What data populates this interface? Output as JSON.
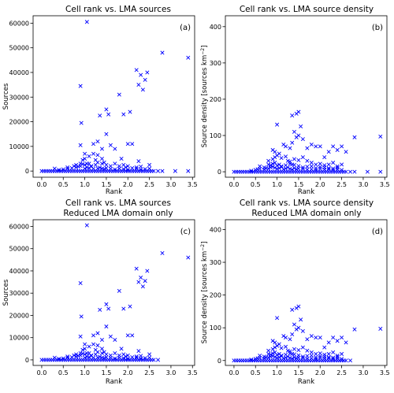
{
  "chart_data": [
    {
      "type": "scatter",
      "title": [
        "Cell rank vs. LMA sources"
      ],
      "panel_label": "(a)",
      "xlabel": "Rank",
      "ylabel": "Sources",
      "ylabel_parts": [
        "Sources",
        "",
        ""
      ],
      "xlim": [
        -0.2,
        3.55
      ],
      "ylim": [
        -2500,
        63000
      ],
      "xticks": [
        0.0,
        0.5,
        1.0,
        1.5,
        2.0,
        2.5,
        3.0,
        3.5
      ],
      "xtick_labels": [
        "0.0",
        "0.5",
        "1.0",
        "1.5",
        "2.0",
        "2.5",
        "3.0",
        "3.5"
      ],
      "yticks": [
        0,
        10000,
        20000,
        30000,
        40000,
        50000,
        60000
      ],
      "ytick_labels": [
        "0",
        "10000",
        "20000",
        "30000",
        "40000",
        "50000",
        "60000"
      ],
      "marker": "x",
      "color": "#0000ff",
      "x": [
        0.0,
        0.05,
        0.1,
        0.15,
        0.2,
        0.25,
        0.3,
        0.35,
        0.4,
        0.45,
        0.5,
        0.55,
        0.6,
        0.65,
        0.7,
        0.75,
        0.8,
        0.85,
        0.9,
        0.95,
        1.0,
        1.05,
        1.1,
        1.15,
        1.2,
        1.25,
        1.3,
        1.35,
        1.4,
        1.45,
        1.5,
        1.55,
        1.6,
        1.65,
        1.7,
        1.75,
        1.8,
        1.85,
        1.9,
        1.95,
        2.0,
        2.05,
        2.1,
        2.15,
        2.2,
        2.25,
        2.3,
        2.35,
        2.4,
        2.45,
        2.5,
        2.55,
        2.6,
        2.7,
        2.8,
        3.1,
        3.4,
        0.4,
        0.5,
        0.6,
        0.7,
        0.8,
        0.85,
        0.9,
        1.0,
        1.05,
        1.1,
        1.15,
        1.2,
        1.3,
        1.35,
        1.4,
        1.45,
        1.5,
        1.6,
        1.7,
        1.8,
        1.9,
        2.0,
        2.1,
        2.2,
        2.3,
        2.4,
        2.5,
        0.3,
        0.6,
        0.75,
        0.8,
        0.9,
        0.95,
        1.0,
        1.05,
        1.15,
        1.25,
        1.3,
        1.4,
        1.5,
        1.6,
        1.7,
        1.8,
        1.9,
        2.0,
        2.2,
        2.3,
        0.95,
        1.0,
        1.1,
        1.2,
        1.3,
        1.4,
        0.9,
        0.92,
        1.0,
        1.1,
        1.2,
        1.25,
        1.3,
        1.35,
        1.4,
        1.5,
        1.55,
        1.6,
        1.7,
        1.8,
        1.85,
        1.9,
        2.0,
        2.05,
        2.1,
        2.2,
        2.25,
        2.3,
        2.35,
        2.4,
        2.45,
        2.5,
        2.8,
        3.4,
        0.9,
        1.05,
        1.45,
        1.5,
        1.95,
        2.25
      ],
      "y": [
        0,
        0,
        0,
        0,
        0,
        0,
        0,
        0,
        0,
        0,
        0,
        0,
        0,
        0,
        0,
        0,
        0,
        0,
        0,
        0,
        0,
        0,
        0,
        0,
        0,
        0,
        0,
        0,
        0,
        0,
        0,
        0,
        0,
        0,
        0,
        0,
        0,
        0,
        0,
        0,
        0,
        0,
        0,
        0,
        0,
        0,
        0,
        0,
        0,
        0,
        0,
        0,
        0,
        0,
        0,
        0,
        0,
        500,
        700,
        900,
        1200,
        1500,
        1800,
        2000,
        1000,
        1500,
        1200,
        1800,
        900,
        1100,
        1400,
        1000,
        800,
        1200,
        900,
        700,
        1000,
        800,
        600,
        1200,
        900,
        700,
        800,
        1000,
        1000,
        1500,
        2000,
        2500,
        3000,
        2800,
        2500,
        3000,
        2000,
        2500,
        3500,
        3000,
        2500,
        2000,
        3000,
        2000,
        2500,
        2000,
        1500,
        1800,
        4500,
        5000,
        6000,
        7000,
        6500,
        5000,
        10500,
        19500,
        7000,
        3000,
        11000,
        4500,
        12000,
        22500,
        9000,
        15000,
        23000,
        10500,
        9000,
        31000,
        5000,
        23000,
        11000,
        24000,
        11000,
        41000,
        35000,
        39000,
        33000,
        37000,
        40000,
        2500,
        48000,
        46000,
        34500,
        60500,
        3500,
        25000,
        1500,
        4000
      ]
    },
    {
      "type": "scatter",
      "title": [
        "Cell rank vs. LMA source density"
      ],
      "panel_label": "(b)",
      "xlabel": "Rank",
      "ylabel": "Source density [sources km−2]",
      "ylabel_parts": [
        "Source density [sources km",
        "−2",
        "]"
      ],
      "xlim": [
        -0.2,
        3.55
      ],
      "ylim": [
        -15,
        430
      ],
      "xticks": [
        0.0,
        0.5,
        1.0,
        1.5,
        2.0,
        2.5,
        3.0,
        3.5
      ],
      "xtick_labels": [
        "0.0",
        "0.5",
        "1.0",
        "1.5",
        "2.0",
        "2.5",
        "3.0",
        "3.5"
      ],
      "yticks": [
        0,
        100,
        200,
        300,
        400
      ],
      "ytick_labels": [
        "0",
        "100",
        "200",
        "300",
        "400"
      ],
      "marker": "x",
      "color": "#0000ff",
      "x": [
        0.0,
        0.05,
        0.1,
        0.15,
        0.2,
        0.25,
        0.3,
        0.35,
        0.4,
        0.45,
        0.5,
        0.55,
        0.6,
        0.65,
        0.7,
        0.75,
        0.8,
        0.85,
        0.9,
        0.95,
        1.0,
        1.05,
        1.1,
        1.15,
        1.2,
        1.25,
        1.3,
        1.35,
        1.4,
        1.45,
        1.5,
        1.55,
        1.6,
        1.65,
        1.7,
        1.75,
        1.8,
        1.85,
        1.9,
        1.95,
        2.0,
        2.05,
        2.1,
        2.15,
        2.2,
        2.25,
        2.3,
        2.35,
        2.4,
        2.45,
        2.5,
        2.55,
        2.6,
        2.7,
        2.8,
        3.1,
        3.4,
        0.4,
        0.5,
        0.55,
        0.6,
        0.7,
        0.75,
        0.8,
        0.85,
        0.9,
        0.95,
        1.0,
        1.05,
        1.1,
        1.15,
        1.2,
        1.25,
        1.3,
        1.35,
        1.4,
        1.45,
        1.5,
        1.6,
        1.7,
        1.8,
        1.9,
        2.0,
        2.1,
        2.2,
        2.3,
        2.4,
        2.5,
        0.6,
        0.7,
        0.8,
        0.85,
        0.9,
        0.95,
        1.0,
        1.05,
        1.1,
        1.2,
        1.3,
        1.35,
        1.4,
        1.5,
        1.6,
        1.7,
        1.8,
        1.9,
        2.0,
        2.1,
        2.2,
        2.3,
        2.4,
        0.8,
        0.9,
        0.95,
        1.0,
        1.1,
        1.2,
        1.25,
        1.3,
        1.4,
        1.5,
        1.6,
        1.7,
        1.8,
        1.9,
        2.0,
        2.1,
        2.2,
        2.3,
        2.4,
        2.5,
        0.9,
        0.95,
        1.05,
        1.15,
        1.2,
        1.3,
        1.35,
        1.4,
        1.45,
        1.5,
        1.55,
        1.6,
        1.7,
        1.8,
        1.9,
        2.0,
        2.1,
        2.2,
        2.3,
        2.4,
        2.5,
        2.6,
        2.8,
        3.4,
        1.0,
        1.35,
        1.45,
        1.5
      ],
      "y": [
        0,
        0,
        0,
        0,
        0,
        0,
        0,
        0,
        0,
        0,
        0,
        0,
        0,
        0,
        0,
        0,
        0,
        0,
        0,
        0,
        0,
        0,
        0,
        0,
        0,
        0,
        0,
        0,
        0,
        0,
        0,
        0,
        0,
        0,
        0,
        0,
        0,
        0,
        0,
        0,
        0,
        0,
        0,
        0,
        0,
        0,
        0,
        0,
        0,
        0,
        0,
        0,
        0,
        0,
        0,
        0,
        0,
        3,
        5,
        7,
        8,
        6,
        10,
        9,
        12,
        14,
        11,
        8,
        10,
        13,
        7,
        9,
        12,
        8,
        6,
        10,
        7,
        9,
        8,
        6,
        7,
        5,
        8,
        6,
        7,
        5,
        6,
        5,
        15,
        12,
        20,
        18,
        22,
        25,
        17,
        20,
        15,
        18,
        22,
        20,
        19,
        16,
        12,
        14,
        15,
        10,
        13,
        12,
        10,
        9,
        11,
        30,
        35,
        40,
        45,
        38,
        42,
        30,
        28,
        35,
        32,
        40,
        30,
        25,
        20,
        22,
        18,
        20,
        25,
        15,
        20,
        60,
        55,
        50,
        75,
        70,
        65,
        80,
        110,
        95,
        100,
        125,
        90,
        65,
        75,
        70,
        70,
        40,
        55,
        70,
        60,
        70,
        55,
        95,
        97,
        130,
        155,
        160,
        165
      ]
    },
    {
      "type": "scatter",
      "title": [
        "Cell rank vs. LMA sources",
        "Reduced LMA domain only"
      ],
      "panel_label": "(c)",
      "xlabel": "Rank",
      "ylabel": "Sources",
      "ylabel_parts": [
        "Sources",
        "",
        ""
      ],
      "xlim": [
        -0.2,
        3.55
      ],
      "ylim": [
        -2500,
        63000
      ],
      "xticks": [
        0.0,
        0.5,
        1.0,
        1.5,
        2.0,
        2.5,
        3.0,
        3.5
      ],
      "xtick_labels": [
        "0.0",
        "0.5",
        "1.0",
        "1.5",
        "2.0",
        "2.5",
        "3.0",
        "3.5"
      ],
      "yticks": [
        0,
        10000,
        20000,
        30000,
        40000,
        50000,
        60000
      ],
      "ytick_labels": [
        "0",
        "10000",
        "20000",
        "30000",
        "40000",
        "50000",
        "60000"
      ],
      "marker": "x",
      "color": "#0000ff",
      "x": [
        0.0,
        0.05,
        0.1,
        0.15,
        0.2,
        0.25,
        0.3,
        0.35,
        0.4,
        0.45,
        0.5,
        0.55,
        0.6,
        0.65,
        0.7,
        0.75,
        0.8,
        0.85,
        0.9,
        0.95,
        1.0,
        1.05,
        1.1,
        1.15,
        1.2,
        1.25,
        1.3,
        1.35,
        1.4,
        1.45,
        1.5,
        1.55,
        1.6,
        1.65,
        1.7,
        1.75,
        1.8,
        1.85,
        1.9,
        1.95,
        2.0,
        2.05,
        2.1,
        2.15,
        2.2,
        2.25,
        2.3,
        2.35,
        2.4,
        2.45,
        2.5,
        2.55,
        2.6,
        2.7,
        0.4,
        0.5,
        0.6,
        0.7,
        0.8,
        0.85,
        0.9,
        1.0,
        1.05,
        1.1,
        1.15,
        1.2,
        1.3,
        1.35,
        1.4,
        1.45,
        1.5,
        1.6,
        1.7,
        1.8,
        1.9,
        2.0,
        2.1,
        2.2,
        2.3,
        2.4,
        2.5,
        0.3,
        0.6,
        0.75,
        0.8,
        0.9,
        0.95,
        1.0,
        1.05,
        1.15,
        1.25,
        1.3,
        1.4,
        1.5,
        1.6,
        1.7,
        1.8,
        1.9,
        2.0,
        2.2,
        2.3,
        0.95,
        1.0,
        1.1,
        1.2,
        1.3,
        1.4,
        0.9,
        0.92,
        1.0,
        1.1,
        1.2,
        1.25,
        1.3,
        1.35,
        1.4,
        1.5,
        1.55,
        1.6,
        1.7,
        1.8,
        1.85,
        1.9,
        2.0,
        2.05,
        2.1,
        2.2,
        2.25,
        2.3,
        2.35,
        2.4,
        2.45,
        2.5,
        2.8,
        3.4,
        0.9,
        1.05,
        1.45,
        1.5,
        1.95,
        2.25
      ],
      "y": [
        0,
        0,
        0,
        0,
        0,
        0,
        0,
        0,
        0,
        0,
        0,
        0,
        0,
        0,
        0,
        0,
        0,
        0,
        0,
        0,
        0,
        0,
        0,
        0,
        0,
        0,
        0,
        0,
        0,
        0,
        0,
        0,
        0,
        0,
        0,
        0,
        0,
        0,
        0,
        0,
        0,
        0,
        0,
        0,
        0,
        0,
        0,
        0,
        0,
        0,
        0,
        0,
        0,
        0,
        500,
        700,
        900,
        1200,
        1500,
        1800,
        2000,
        1000,
        1500,
        1200,
        1800,
        900,
        1100,
        1400,
        1000,
        800,
        1200,
        900,
        700,
        1000,
        800,
        600,
        1200,
        900,
        700,
        800,
        1000,
        1000,
        1500,
        2000,
        2500,
        3000,
        2800,
        2500,
        3000,
        2000,
        2500,
        3500,
        3000,
        2500,
        2000,
        3000,
        2000,
        2500,
        2000,
        1500,
        1800,
        4500,
        5000,
        6000,
        7000,
        6500,
        5000,
        10500,
        19500,
        7000,
        3000,
        11000,
        4500,
        12000,
        22500,
        9000,
        15000,
        23000,
        10500,
        9000,
        31000,
        5000,
        23000,
        11000,
        24000,
        11000,
        41000,
        35000,
        37000,
        33000,
        35500,
        40000,
        2500,
        48000,
        46000,
        34500,
        60500,
        3500,
        25000,
        1500,
        4000
      ]
    },
    {
      "type": "scatter",
      "title": [
        "Cell rank vs. LMA source density",
        "Reduced LMA domain only"
      ],
      "panel_label": "(d)",
      "xlabel": "Rank",
      "ylabel": "Source density [sources km−2]",
      "ylabel_parts": [
        "Source density [sources km",
        "−2",
        "]"
      ],
      "xlim": [
        -0.2,
        3.55
      ],
      "ylim": [
        -15,
        430
      ],
      "xticks": [
        0.0,
        0.5,
        1.0,
        1.5,
        2.0,
        2.5,
        3.0,
        3.5
      ],
      "xtick_labels": [
        "0.0",
        "0.5",
        "1.0",
        "1.5",
        "2.0",
        "2.5",
        "3.0",
        "3.5"
      ],
      "yticks": [
        0,
        100,
        200,
        300,
        400
      ],
      "ytick_labels": [
        "0",
        "100",
        "200",
        "300",
        "400"
      ],
      "marker": "x",
      "color": "#0000ff",
      "x": [
        0.0,
        0.05,
        0.1,
        0.15,
        0.2,
        0.25,
        0.3,
        0.35,
        0.4,
        0.45,
        0.5,
        0.55,
        0.6,
        0.65,
        0.7,
        0.75,
        0.8,
        0.85,
        0.9,
        0.95,
        1.0,
        1.05,
        1.1,
        1.15,
        1.2,
        1.25,
        1.3,
        1.35,
        1.4,
        1.45,
        1.5,
        1.55,
        1.6,
        1.65,
        1.7,
        1.75,
        1.8,
        1.85,
        1.9,
        1.95,
        2.0,
        2.05,
        2.1,
        2.15,
        2.2,
        2.25,
        2.3,
        2.35,
        2.4,
        2.45,
        2.5,
        2.55,
        2.6,
        2.7,
        0.4,
        0.5,
        0.55,
        0.6,
        0.7,
        0.75,
        0.8,
        0.85,
        0.9,
        0.95,
        1.0,
        1.05,
        1.1,
        1.15,
        1.2,
        1.25,
        1.3,
        1.35,
        1.4,
        1.45,
        1.5,
        1.6,
        1.7,
        1.8,
        1.9,
        2.0,
        2.1,
        2.2,
        2.3,
        2.4,
        2.5,
        0.6,
        0.7,
        0.8,
        0.85,
        0.9,
        0.95,
        1.0,
        1.05,
        1.1,
        1.2,
        1.3,
        1.35,
        1.4,
        1.5,
        1.6,
        1.7,
        1.8,
        1.9,
        2.0,
        2.1,
        2.2,
        2.3,
        2.4,
        0.8,
        0.9,
        0.95,
        1.0,
        1.1,
        1.2,
        1.25,
        1.3,
        1.4,
        1.5,
        1.6,
        1.7,
        1.8,
        1.9,
        2.0,
        2.1,
        2.2,
        2.3,
        2.4,
        2.5,
        0.9,
        0.95,
        1.05,
        1.15,
        1.2,
        1.3,
        1.35,
        1.4,
        1.45,
        1.5,
        1.55,
        1.6,
        1.7,
        1.8,
        1.9,
        2.0,
        2.1,
        2.2,
        2.3,
        2.4,
        2.5,
        2.6,
        2.8,
        3.4,
        1.0,
        1.35,
        1.45,
        1.5
      ],
      "y": [
        0,
        0,
        0,
        0,
        0,
        0,
        0,
        0,
        0,
        0,
        0,
        0,
        0,
        0,
        0,
        0,
        0,
        0,
        0,
        0,
        0,
        0,
        0,
        0,
        0,
        0,
        0,
        0,
        0,
        0,
        0,
        0,
        0,
        0,
        0,
        0,
        0,
        0,
        0,
        0,
        0,
        0,
        0,
        0,
        0,
        0,
        0,
        0,
        0,
        0,
        0,
        0,
        0,
        0,
        3,
        5,
        7,
        8,
        6,
        10,
        9,
        12,
        14,
        11,
        8,
        10,
        13,
        7,
        9,
        12,
        8,
        6,
        10,
        7,
        9,
        8,
        6,
        7,
        5,
        8,
        6,
        7,
        5,
        6,
        5,
        15,
        12,
        20,
        18,
        22,
        25,
        17,
        20,
        15,
        18,
        22,
        20,
        19,
        16,
        12,
        14,
        15,
        10,
        13,
        12,
        10,
        9,
        11,
        30,
        35,
        40,
        45,
        38,
        42,
        30,
        28,
        35,
        32,
        40,
        30,
        25,
        20,
        22,
        18,
        20,
        25,
        15,
        20,
        60,
        55,
        50,
        75,
        70,
        65,
        80,
        110,
        95,
        100,
        125,
        90,
        65,
        75,
        70,
        70,
        40,
        55,
        70,
        60,
        70,
        55,
        95,
        97,
        130,
        155,
        160,
        165
      ]
    }
  ]
}
